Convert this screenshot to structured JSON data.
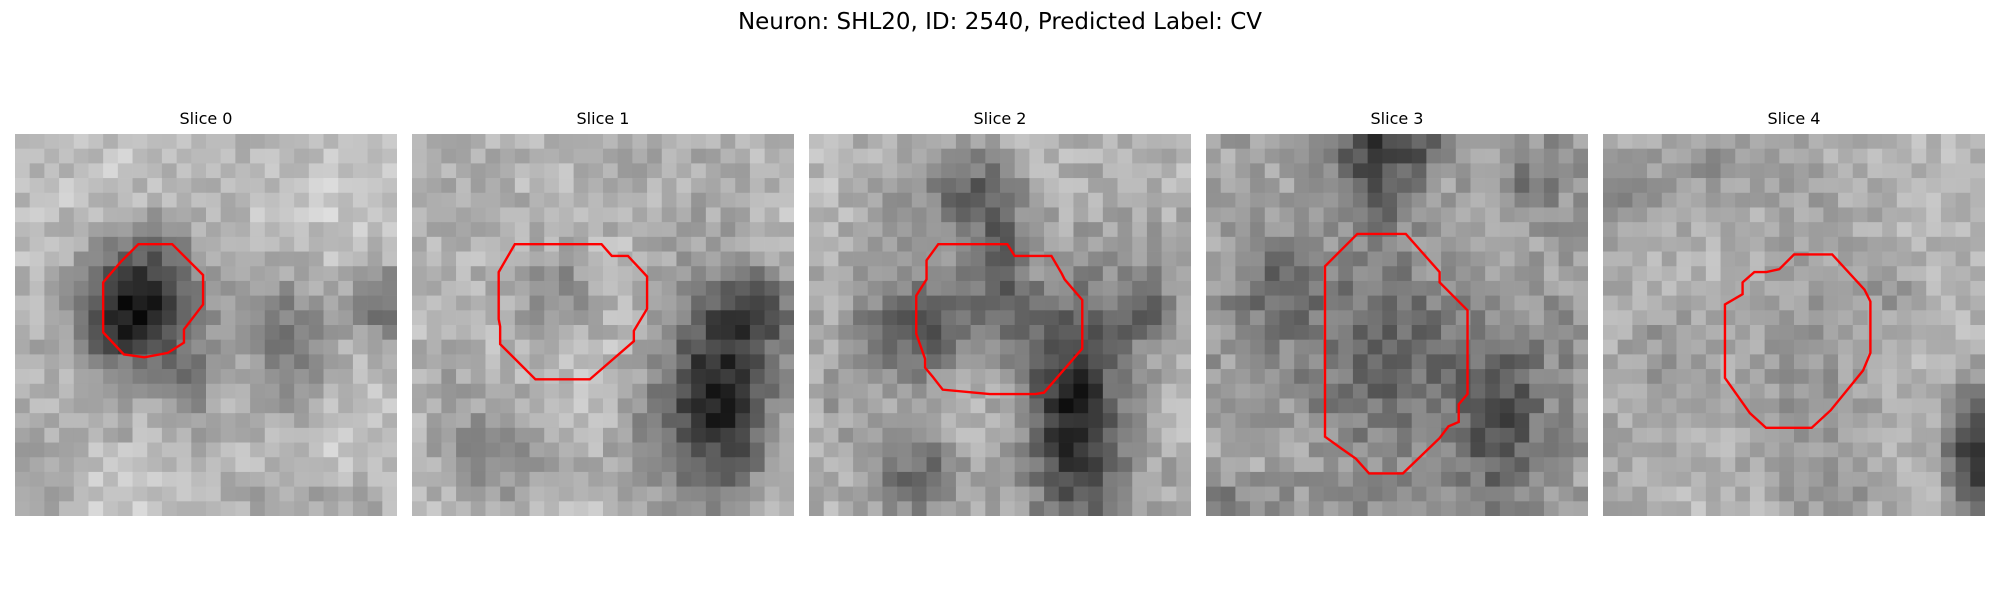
{
  "figure": {
    "title": "Neuron: SHL20, ID: 2540, Predicted Label: CV"
  },
  "colors": {
    "contour": "#ff0000",
    "colormap": "grayscale"
  },
  "slices": [
    {
      "title": "Slice 0"
    },
    {
      "title": "Slice 1"
    },
    {
      "title": "Slice 2"
    },
    {
      "title": "Slice 3"
    },
    {
      "title": "Slice 4"
    }
  ]
}
